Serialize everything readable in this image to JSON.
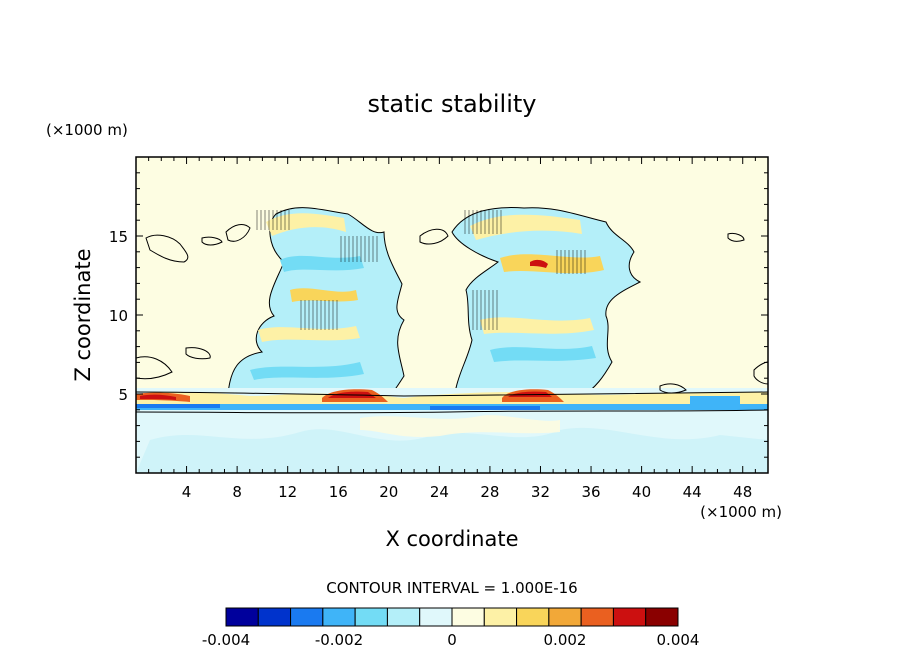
{
  "chart_data": {
    "type": "heatmap",
    "title": "static stability",
    "xlabel": "X coordinate",
    "ylabel": "Z coordinate",
    "x_unit": "(×1000 m)",
    "y_unit": "(×1000 m)",
    "xlim": [
      0,
      50
    ],
    "ylim": [
      0,
      20
    ],
    "x_ticks": [
      4,
      8,
      12,
      16,
      20,
      24,
      28,
      32,
      36,
      40,
      44,
      48
    ],
    "y_ticks": [
      5,
      10,
      15
    ],
    "contour_interval_label": "CONTOUR INTERVAL = 1.000E-16",
    "colorbar": {
      "min": -0.004,
      "max": 0.004,
      "tick_labels": [
        "-0.004",
        "-0.002",
        "0",
        "0.002",
        "0.004"
      ],
      "tick_values": [
        -0.004,
        -0.002,
        0,
        0.002,
        0.004
      ],
      "colors": [
        "#00009c",
        "#0033cc",
        "#1a7af0",
        "#3fb4f8",
        "#73dcf5",
        "#b4eff9",
        "#e0f8fb",
        "#fdfde2",
        "#fdf1a6",
        "#f9d55a",
        "#f2a838",
        "#ea6020",
        "#cc1010",
        "#8a0000"
      ]
    },
    "features": [
      {
        "name": "cloud-left",
        "x": [
          12,
          20
        ],
        "z": [
          4,
          17.5
        ],
        "sign": "mixed"
      },
      {
        "name": "cloud-right",
        "x": [
          26,
          38
        ],
        "z": [
          4,
          17.5
        ],
        "sign": "mixed"
      },
      {
        "name": "stable-layer",
        "x": [
          0,
          50
        ],
        "z": [
          4,
          5.5
        ],
        "sign": "positive"
      },
      {
        "name": "boundary-layer",
        "x": [
          0,
          50
        ],
        "z": [
          0,
          4
        ],
        "sign": "weak-negative"
      }
    ]
  }
}
